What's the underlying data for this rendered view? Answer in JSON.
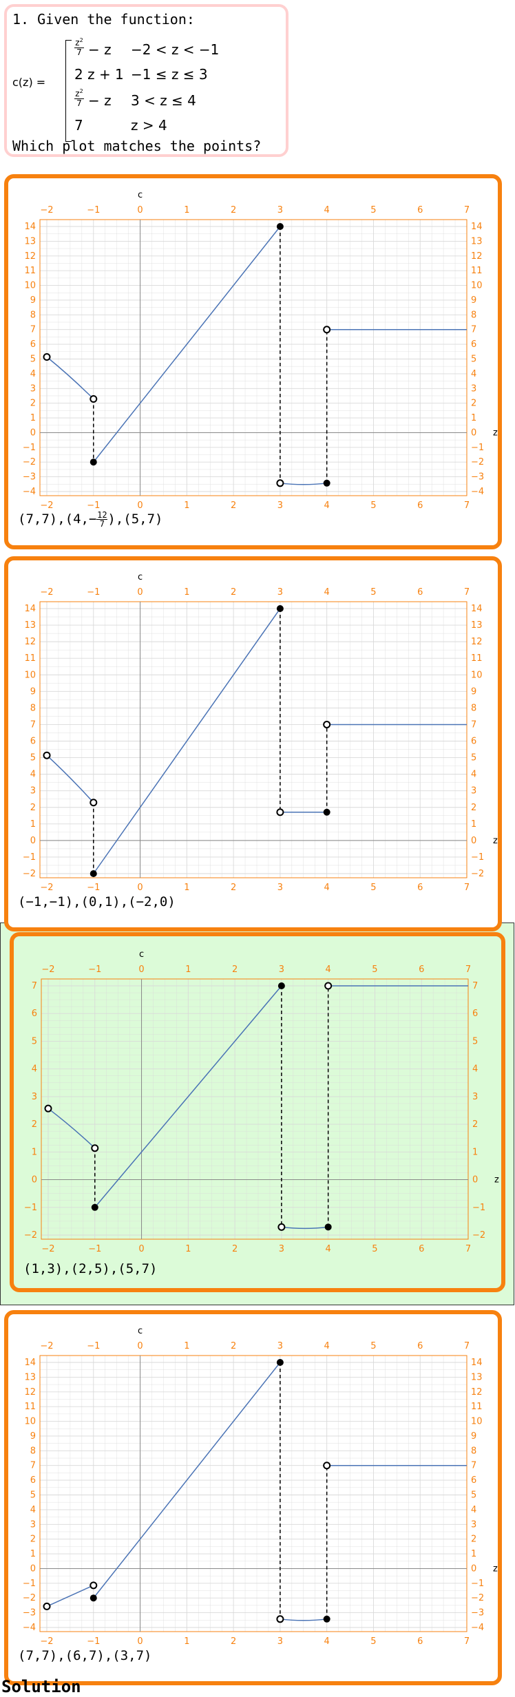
{
  "question": {
    "intro": "1. Given the function:",
    "lhs": "c(z)",
    "pieces": [
      {
        "expr_num": "z",
        "expr_den": "7",
        "expr_rest": "− z",
        "cond": "−2 < z < −1"
      },
      {
        "expr": "2 z + 1",
        "cond": "−1 ≤ z ≤ 3"
      },
      {
        "expr_num": "z",
        "expr_den": "7",
        "expr_rest": "− z",
        "cond": "3 < z ≤ 4"
      },
      {
        "expr": "7",
        "cond": "z > 4"
      }
    ],
    "prompt": "Which plot matches the points?"
  },
  "options": [
    {
      "caption": "(7,7),(4,−",
      "caption_frac_num": "12",
      "caption_frac_den": "7",
      "caption_tail": "),(5,7)",
      "selected": false,
      "chart_data": {
        "type": "line",
        "xlabel": "z",
        "ylabel": "c",
        "xlim": [
          -2,
          7
        ],
        "ylim": [
          -4,
          14
        ],
        "xticks": [
          -2,
          -1,
          0,
          1,
          2,
          3,
          4,
          5,
          6,
          7
        ],
        "yticks": [
          -4,
          -3,
          -2,
          -1,
          0,
          1,
          2,
          3,
          4,
          5,
          6,
          7,
          8,
          9,
          10,
          11,
          12,
          13,
          14
        ],
        "segments": [
          {
            "kind": "curve",
            "x": [
              -2,
              -1
            ],
            "y": [
              5.14,
              2.29
            ]
          },
          {
            "kind": "line",
            "x": [
              -1,
              3
            ],
            "y": [
              -2,
              14
            ]
          },
          {
            "kind": "curve",
            "x": [
              3,
              4
            ],
            "y": [
              -3.43,
              -3.43
            ]
          },
          {
            "kind": "line",
            "x": [
              4,
              7
            ],
            "y": [
              7,
              7
            ]
          }
        ],
        "open_points": [
          [
            -2,
            5.14
          ],
          [
            -1,
            2.29
          ],
          [
            3,
            -3.43
          ],
          [
            4,
            7
          ]
        ],
        "closed_points": [
          [
            -1,
            -2
          ],
          [
            3,
            14
          ],
          [
            4,
            -3.43
          ]
        ],
        "dashed": [
          [
            -1,
            2.29,
            -1,
            -2
          ],
          [
            3,
            14,
            3,
            -3.43
          ],
          [
            4,
            -3.43,
            4,
            7
          ]
        ]
      }
    },
    {
      "caption": "(−1,−1),(0,1),(−2,0)",
      "selected": false,
      "chart_data": {
        "type": "line",
        "xlabel": "z",
        "ylabel": "c",
        "xlim": [
          -2,
          7
        ],
        "ylim": [
          -2,
          14
        ],
        "xticks": [
          -2,
          -1,
          0,
          1,
          2,
          3,
          4,
          5,
          6,
          7
        ],
        "yticks": [
          -2,
          -1,
          0,
          1,
          2,
          3,
          4,
          5,
          6,
          7,
          8,
          9,
          10,
          11,
          12,
          13,
          14
        ],
        "segments": [
          {
            "kind": "curve",
            "x": [
              -2,
              -1
            ],
            "y": [
              5.14,
              2.29
            ]
          },
          {
            "kind": "line",
            "x": [
              -1,
              3
            ],
            "y": [
              -2,
              14
            ]
          },
          {
            "kind": "line",
            "x": [
              3,
              4
            ],
            "y": [
              1.71,
              1.71
            ]
          },
          {
            "kind": "line",
            "x": [
              4,
              7
            ],
            "y": [
              7,
              7
            ]
          }
        ],
        "open_points": [
          [
            -2,
            5.14
          ],
          [
            -1,
            2.29
          ],
          [
            3,
            1.71
          ],
          [
            4,
            7
          ]
        ],
        "closed_points": [
          [
            -1,
            -2
          ],
          [
            3,
            14
          ],
          [
            4,
            1.71
          ]
        ],
        "dashed": [
          [
            -1,
            2.29,
            -1,
            -2
          ],
          [
            3,
            14,
            3,
            1.71
          ],
          [
            4,
            1.71,
            4,
            7
          ]
        ]
      }
    },
    {
      "caption": "(1,3),(2,5),(5,7)",
      "selected": true,
      "chart_data": {
        "type": "line",
        "xlabel": "z",
        "ylabel": "c",
        "xlim": [
          -2,
          7
        ],
        "ylim": [
          -2,
          7
        ],
        "xticks": [
          -2,
          -1,
          0,
          1,
          2,
          3,
          4,
          5,
          6,
          7
        ],
        "yticks": [
          -2,
          -1,
          0,
          1,
          2,
          3,
          4,
          5,
          6,
          7
        ],
        "segments": [
          {
            "kind": "curve",
            "x": [
              -2,
              -1
            ],
            "y": [
              2.57,
              1.14
            ]
          },
          {
            "kind": "line",
            "x": [
              -1,
              3
            ],
            "y": [
              -1,
              7
            ]
          },
          {
            "kind": "curve",
            "x": [
              3,
              4
            ],
            "y": [
              -1.71,
              -1.71
            ]
          },
          {
            "kind": "line",
            "x": [
              4,
              7
            ],
            "y": [
              7,
              7
            ]
          }
        ],
        "open_points": [
          [
            -2,
            2.57
          ],
          [
            -1,
            1.14
          ],
          [
            3,
            -1.71
          ],
          [
            4,
            7
          ]
        ],
        "closed_points": [
          [
            -1,
            -1
          ],
          [
            3,
            7
          ],
          [
            4,
            -1.71
          ]
        ],
        "dashed": [
          [
            -1,
            1.14,
            -1,
            -1
          ],
          [
            3,
            7,
            3,
            -1.71
          ],
          [
            4,
            -1.71,
            4,
            7
          ]
        ]
      }
    },
    {
      "caption": "(7,7),(6,7),(3,7)",
      "selected": false,
      "chart_data": {
        "type": "line",
        "xlabel": "z",
        "ylabel": "c",
        "xlim": [
          -2,
          7
        ],
        "ylim": [
          -4,
          14
        ],
        "xticks": [
          -2,
          -1,
          0,
          1,
          2,
          3,
          4,
          5,
          6,
          7
        ],
        "yticks": [
          -4,
          -3,
          -2,
          -1,
          0,
          1,
          2,
          3,
          4,
          5,
          6,
          7,
          8,
          9,
          10,
          11,
          12,
          13,
          14
        ],
        "segments": [
          {
            "kind": "line",
            "x": [
              -2,
              -1
            ],
            "y": [
              -2.57,
              -1.14
            ]
          },
          {
            "kind": "line",
            "x": [
              -1,
              3
            ],
            "y": [
              -2,
              14
            ]
          },
          {
            "kind": "curve",
            "x": [
              3,
              4
            ],
            "y": [
              -3.43,
              -3.43
            ]
          },
          {
            "kind": "line",
            "x": [
              4,
              7
            ],
            "y": [
              7,
              7
            ]
          }
        ],
        "open_points": [
          [
            -2,
            -2.57
          ],
          [
            -1,
            -1.14
          ],
          [
            3,
            -3.43
          ],
          [
            4,
            7
          ]
        ],
        "closed_points": [
          [
            -1,
            -2
          ],
          [
            3,
            14
          ],
          [
            4,
            -3.43
          ]
        ],
        "dashed": [
          [
            3,
            14,
            3,
            -3.43
          ],
          [
            4,
            -3.43,
            4,
            7
          ]
        ]
      }
    }
  ],
  "solution_label": "Solution",
  "colors": {
    "accent": "#f7810f",
    "curve": "#4a73b5",
    "grid": "#d9d9d9",
    "selected_bg": "#dcfbd8",
    "question_border": "#ffd0d0"
  }
}
